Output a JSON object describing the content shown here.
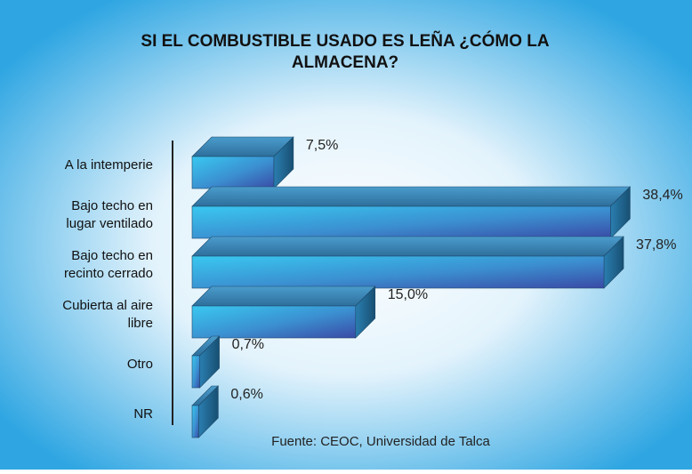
{
  "chart_data": {
    "type": "bar",
    "orientation": "horizontal",
    "title_lines": [
      "SI EL COMBUSTIBLE USADO ES LEÑA ¿CÓMO LA",
      "ALMACENA?"
    ],
    "categories": [
      [
        "A la intemperie"
      ],
      [
        "Bajo techo en",
        "lugar ventilado"
      ],
      [
        "Bajo techo en",
        "recinto cerrado"
      ],
      [
        "Cubierta al aire",
        "libre"
      ],
      [
        "Otro"
      ],
      [
        "NR"
      ]
    ],
    "values": [
      7.5,
      38.4,
      37.8,
      15.0,
      0.7,
      0.6
    ],
    "value_labels": [
      "7,5%",
      "38,4%",
      "37,8%",
      "15,0%",
      "0,7%",
      "0,6%"
    ],
    "unit": "%",
    "grid": false,
    "legend": "none",
    "source": "Fuente: CEOC, Universidad de Talca",
    "colors": {
      "bar_front_light": "#39c8f0",
      "bar_front_dark": "#3a4aa6",
      "bar_top": "#3d7fb0",
      "bar_side": "#1f5f86",
      "background_center": "#ffffff",
      "background_edge": "#2fa6e2"
    }
  }
}
